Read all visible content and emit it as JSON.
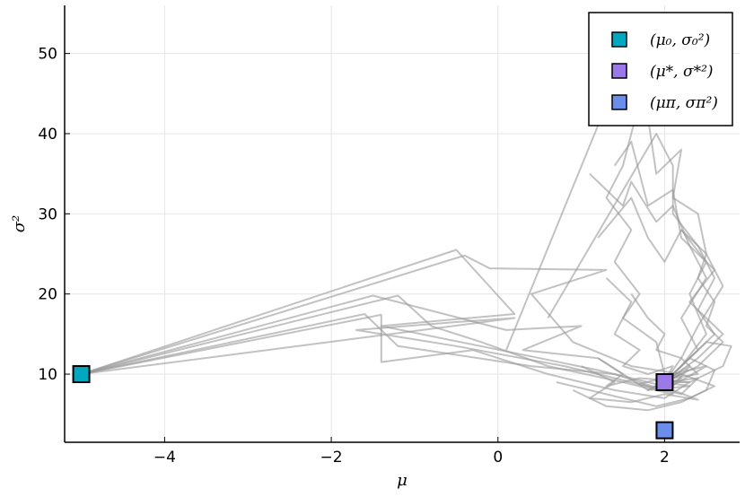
{
  "chart_data": {
    "type": "scatter",
    "title": "",
    "xlabel": "μ",
    "ylabel": "σ²",
    "xlim": [
      -5.2,
      2.9
    ],
    "ylim": [
      1.5,
      56
    ],
    "xticks": [
      -4,
      -2,
      0,
      2
    ],
    "xtick_labels": [
      "−4",
      "−2",
      "0",
      "2"
    ],
    "yticks": [
      10,
      20,
      30,
      40,
      50
    ],
    "ytick_labels": [
      "10",
      "20",
      "30",
      "40",
      "50"
    ],
    "grid": true,
    "legend_position": "top-right",
    "trajectory_color": "#999999",
    "trajectories": [
      [
        [
          -5,
          10
        ],
        [
          -0.5,
          25.5
        ],
        [
          0.2,
          17.5
        ],
        [
          -1.4,
          16
        ],
        [
          0.5,
          12
        ],
        [
          1.2,
          10.5
        ],
        [
          1.8,
          9
        ],
        [
          2,
          8.5
        ],
        [
          2.2,
          9.5
        ],
        [
          1.9,
          8.2
        ],
        [
          2.1,
          9
        ],
        [
          2,
          9
        ]
      ],
      [
        [
          -5,
          10
        ],
        [
          -0.4,
          24.8
        ],
        [
          -0.1,
          23.2
        ],
        [
          1.3,
          23
        ],
        [
          0.4,
          20
        ],
        [
          0.9,
          14
        ],
        [
          1.6,
          11
        ],
        [
          2.2,
          10
        ],
        [
          1.8,
          8
        ],
        [
          2.3,
          8.5
        ],
        [
          2,
          9
        ]
      ],
      [
        [
          -5,
          10
        ],
        [
          -1.2,
          19.8
        ],
        [
          -0.8,
          16
        ],
        [
          -0.2,
          14
        ],
        [
          0.6,
          11
        ],
        [
          1.5,
          9
        ],
        [
          2.1,
          7.5
        ],
        [
          1.7,
          8.8
        ],
        [
          2.2,
          10
        ],
        [
          2,
          9
        ]
      ],
      [
        [
          -5,
          10
        ],
        [
          -1.5,
          19.8
        ],
        [
          0.1,
          15.5
        ],
        [
          1,
          16
        ],
        [
          0.3,
          13
        ],
        [
          1.2,
          12
        ],
        [
          1.8,
          8
        ],
        [
          2.3,
          11
        ],
        [
          2.1,
          8.5
        ],
        [
          2,
          9
        ]
      ],
      [
        [
          -5,
          10
        ],
        [
          -1.6,
          17.5
        ],
        [
          -1.2,
          13.5
        ],
        [
          0.4,
          11
        ],
        [
          1.4,
          10
        ],
        [
          2,
          8
        ],
        [
          2.5,
          11
        ],
        [
          1.9,
          9.5
        ],
        [
          2,
          9
        ]
      ],
      [
        [
          -5,
          10
        ],
        [
          0.2,
          17
        ],
        [
          -0.5,
          16.5
        ],
        [
          -1.7,
          15.5
        ],
        [
          -0.5,
          13.5
        ],
        [
          0.8,
          11
        ],
        [
          1.6,
          9
        ],
        [
          2.2,
          7.5
        ],
        [
          2.4,
          9.5
        ],
        [
          2,
          9
        ]
      ],
      [
        [
          -5,
          10
        ],
        [
          -1.4,
          17.4
        ],
        [
          -1.4,
          11.5
        ],
        [
          -0.3,
          13
        ],
        [
          0.6,
          10
        ],
        [
          1.4,
          8
        ],
        [
          2,
          7
        ],
        [
          2.3,
          9
        ],
        [
          2,
          9
        ]
      ],
      [
        [
          0.1,
          13
        ],
        [
          1.2,
          41
        ],
        [
          1.7,
          44
        ],
        [
          1.5,
          36
        ],
        [
          1.3,
          32
        ],
        [
          1.6,
          28
        ],
        [
          1.4,
          24
        ],
        [
          1.7,
          20
        ],
        [
          1.5,
          17
        ],
        [
          1.9,
          14
        ],
        [
          2,
          10
        ],
        [
          2,
          9
        ]
      ],
      [
        [
          0.6,
          17
        ],
        [
          1.9,
          40
        ],
        [
          2.1,
          36
        ],
        [
          2.1,
          30
        ],
        [
          2.4,
          26
        ],
        [
          2.6,
          22
        ],
        [
          2.4,
          18
        ],
        [
          2.6,
          15
        ],
        [
          2.3,
          12
        ],
        [
          2.1,
          10
        ],
        [
          2,
          9
        ]
      ],
      [
        [
          1.4,
          36
        ],
        [
          1.6,
          39
        ],
        [
          1.8,
          31
        ],
        [
          2.1,
          33
        ],
        [
          2.2,
          27
        ],
        [
          2.6,
          23
        ],
        [
          2.3,
          19
        ],
        [
          2.7,
          15
        ],
        [
          2.4,
          12
        ],
        [
          2,
          9
        ]
      ],
      [
        [
          1.2,
          27
        ],
        [
          1.6,
          32
        ],
        [
          1.8,
          27
        ],
        [
          2.0,
          24
        ],
        [
          2.2,
          28
        ],
        [
          2.5,
          24
        ],
        [
          2.3,
          20
        ],
        [
          2.5,
          15
        ],
        [
          2.2,
          11
        ],
        [
          2,
          9
        ]
      ],
      [
        [
          1.1,
          35
        ],
        [
          1.5,
          31
        ],
        [
          1.6,
          34
        ],
        [
          1.9,
          29
        ],
        [
          2.1,
          31
        ],
        [
          2.3,
          26
        ],
        [
          2.5,
          22
        ],
        [
          2.2,
          17
        ],
        [
          2.4,
          13
        ],
        [
          2,
          9
        ]
      ],
      [
        [
          1.8,
          42
        ],
        [
          1.9,
          35
        ],
        [
          2.2,
          38
        ],
        [
          2.1,
          32
        ],
        [
          2.4,
          30
        ],
        [
          2.5,
          25
        ],
        [
          2.7,
          21
        ],
        [
          2.4,
          16
        ],
        [
          2.2,
          12
        ],
        [
          2,
          9
        ]
      ],
      [
        [
          1.3,
          22
        ],
        [
          1.6,
          19
        ],
        [
          1.4,
          15
        ],
        [
          1.7,
          13
        ],
        [
          1.5,
          11
        ],
        [
          1.8,
          10
        ],
        [
          2.1,
          11
        ],
        [
          2,
          9
        ]
      ],
      [
        [
          1.0,
          11
        ],
        [
          1.4,
          9
        ],
        [
          1.1,
          7
        ],
        [
          1.6,
          6.5
        ],
        [
          2.0,
          7.5
        ],
        [
          2.4,
          6.8
        ],
        [
          2.1,
          8
        ],
        [
          2,
          9
        ]
      ],
      [
        [
          0.9,
          8
        ],
        [
          1.3,
          6
        ],
        [
          1.8,
          5.5
        ],
        [
          2.2,
          6.5
        ],
        [
          2.5,
          8
        ],
        [
          2.6,
          10.5
        ],
        [
          2.3,
          12
        ],
        [
          2,
          9
        ]
      ],
      [
        [
          1.2,
          12
        ],
        [
          1.5,
          10
        ],
        [
          1.3,
          8.5
        ],
        [
          1.7,
          9.5
        ],
        [
          2.3,
          9
        ],
        [
          2.7,
          11
        ],
        [
          2.8,
          13.5
        ],
        [
          2.5,
          14
        ],
        [
          2,
          9
        ]
      ],
      [
        [
          0.7,
          9
        ],
        [
          1.1,
          8
        ],
        [
          1.5,
          7
        ],
        [
          1.9,
          6
        ],
        [
          2.3,
          7
        ],
        [
          2.6,
          8.5
        ],
        [
          2.2,
          10
        ],
        [
          2,
          9
        ]
      ],
      [
        [
          1.6,
          20
        ],
        [
          1.8,
          17
        ],
        [
          2.0,
          15
        ],
        [
          1.9,
          13
        ],
        [
          2.2,
          12
        ],
        [
          2.4,
          10
        ],
        [
          2.1,
          9.5
        ],
        [
          2,
          9
        ]
      ],
      [
        [
          2.2,
          28
        ],
        [
          2.5,
          25
        ],
        [
          2.4,
          22
        ],
        [
          2.6,
          19
        ],
        [
          2.5,
          16
        ],
        [
          2.7,
          14
        ],
        [
          2.4,
          11
        ],
        [
          2,
          9
        ]
      ]
    ],
    "series": [
      {
        "name": "(μ₀, σ₀²)",
        "color": "#00a9bf",
        "points": [
          [
            -5,
            10
          ]
        ]
      },
      {
        "name": "(μ*, σ*²)",
        "color": "#9b79e8",
        "points": [
          [
            2,
            9
          ]
        ]
      },
      {
        "name": "(μπ, σπ²)",
        "color": "#6b8eeb",
        "points": [
          [
            2,
            3
          ]
        ]
      }
    ],
    "legend": [
      {
        "label": "(μ₀, σ₀²)",
        "color": "#00a9bf"
      },
      {
        "label": "(μ*, σ*²)",
        "color": "#9b79e8"
      },
      {
        "label": "(μπ, σπ²)",
        "color": "#6b8eeb"
      }
    ]
  }
}
